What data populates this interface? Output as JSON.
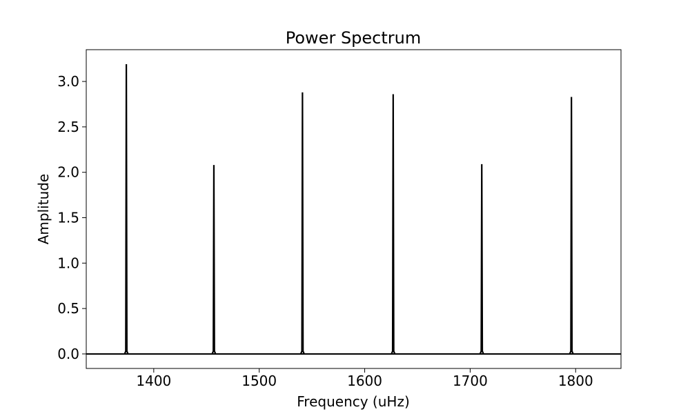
{
  "chart_data": {
    "type": "line",
    "title": "Power Spectrum",
    "xlabel": "Frequency (uHz)",
    "ylabel": "Amplitude",
    "xlim": [
      1336,
      1843
    ],
    "ylim": [
      -0.16,
      3.35
    ],
    "xticks": [
      1400,
      1500,
      1600,
      1700,
      1800
    ],
    "xtick_labels": [
      "1400",
      "1500",
      "1600",
      "1700",
      "1800"
    ],
    "yticks": [
      0.0,
      0.5,
      1.0,
      1.5,
      2.0,
      2.5,
      3.0
    ],
    "ytick_labels": [
      "0.0",
      "0.5",
      "1.0",
      "1.5",
      "2.0",
      "2.5",
      "3.0"
    ],
    "grid": false,
    "series": [
      {
        "color": "#000000",
        "peaks": [
          {
            "x": 1374,
            "y": 3.19
          },
          {
            "x": 1457,
            "y": 2.08
          },
          {
            "x": 1541,
            "y": 2.88
          },
          {
            "x": 1627,
            "y": 2.86
          },
          {
            "x": 1711,
            "y": 2.09
          },
          {
            "x": 1796,
            "y": 2.83
          }
        ],
        "baseline": 0.0
      }
    ]
  }
}
